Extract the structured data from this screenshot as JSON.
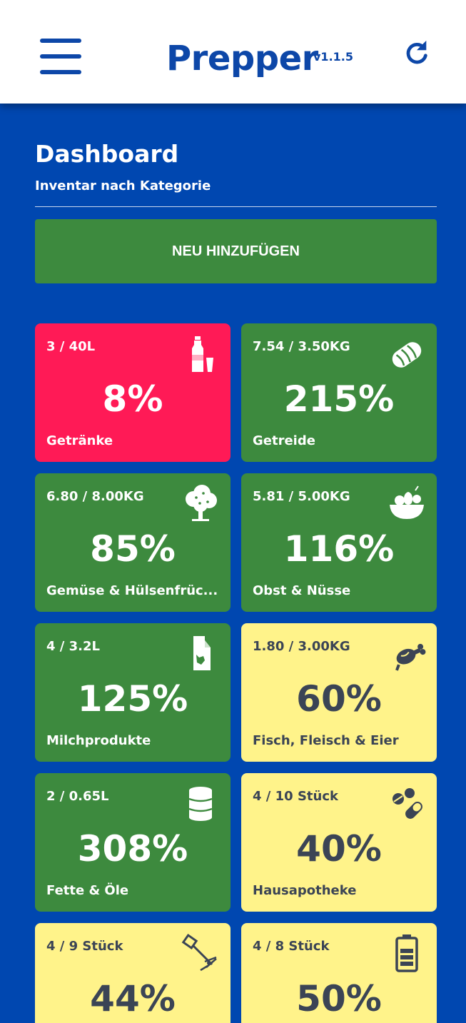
{
  "header": {
    "title": "Prepper",
    "version": "v1.1.5",
    "menu_icon": "hamburger-menu-icon",
    "refresh_icon": "refresh-icon",
    "brand_color": "#0d47a8"
  },
  "page": {
    "title": "Dashboard",
    "subtitle": "Inventar nach Kategorie",
    "add_button_label": "NEU HINZUFÜGEN",
    "background": "#0047b0"
  },
  "status_colors": {
    "critical": "#ff1a56",
    "ok": "#3d8a3e",
    "warning": "#fff38a"
  },
  "categories": [
    {
      "amount": "3 / 40L",
      "percent": "8%",
      "label": "Getränke",
      "status": "critical",
      "icon": "bottle-and-glass-icon"
    },
    {
      "amount": "7.54 / 3.50KG",
      "percent": "215%",
      "label": "Getreide",
      "status": "ok",
      "icon": "bread-icon"
    },
    {
      "amount": "6.80 / 8.00KG",
      "percent": "85%",
      "label": "Gemüse & Hülsenfrüc...",
      "status": "ok",
      "icon": "tree-icon"
    },
    {
      "amount": "5.81 / 5.00KG",
      "percent": "116%",
      "label": "Obst & Nüsse",
      "status": "ok",
      "icon": "fruit-bowl-icon"
    },
    {
      "amount": "4 / 3.2L",
      "percent": "125%",
      "label": "Milchprodukte",
      "status": "ok",
      "icon": "milk-carton-icon"
    },
    {
      "amount": "1.80 / 3.00KG",
      "percent": "60%",
      "label": "Fisch, Fleisch & Eier",
      "status": "warning",
      "icon": "meat-leg-icon"
    },
    {
      "amount": "2 / 0.65L",
      "percent": "308%",
      "label": "Fette & Öle",
      "status": "ok",
      "icon": "oil-barrel-icon"
    },
    {
      "amount": "4 / 10 Stück",
      "percent": "40%",
      "label": "Hausapotheke",
      "status": "warning",
      "icon": "pills-icon"
    },
    {
      "amount": "4 / 9 Stück",
      "percent": "44%",
      "label": "",
      "status": "warning",
      "icon": "tools-icon"
    },
    {
      "amount": "4 / 8 Stück",
      "percent": "50%",
      "label": "",
      "status": "warning",
      "icon": "battery-icon"
    }
  ]
}
